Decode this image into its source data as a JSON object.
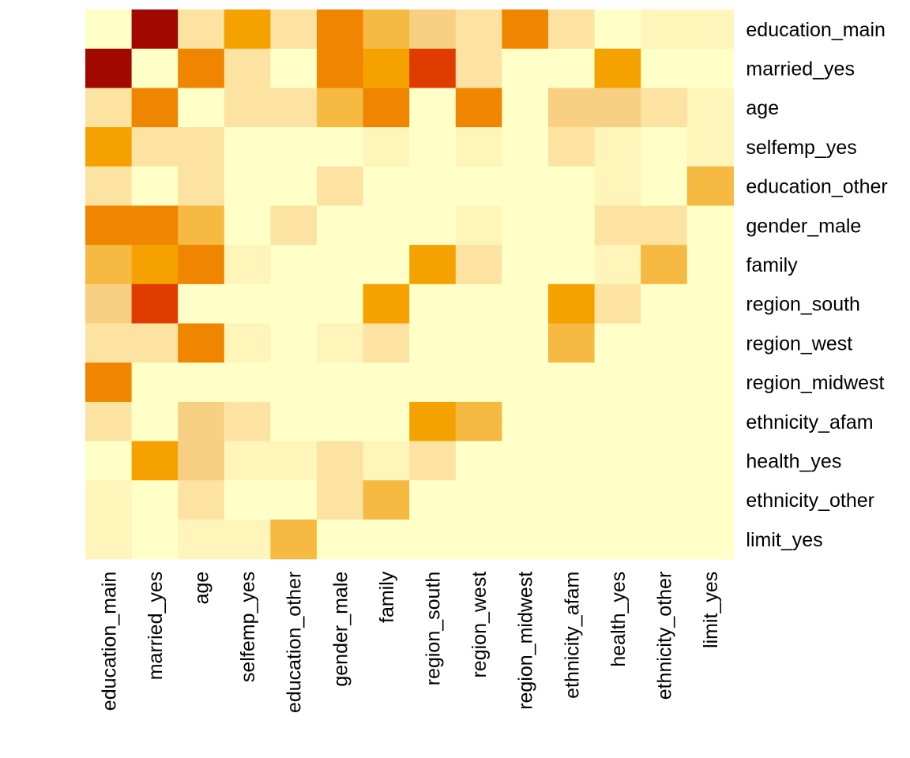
{
  "chart_data": {
    "type": "heatmap",
    "title": "",
    "xlabel": "",
    "ylabel": "",
    "x_categories": [
      "education_main",
      "married_yes",
      "age",
      "selfemp_yes",
      "education_other",
      "gender_male",
      "family",
      "region_south",
      "region_west",
      "region_midwest",
      "ethnicity_afam",
      "health_yes",
      "ethnicity_other",
      "limit_yes"
    ],
    "y_categories": [
      "education_main",
      "married_yes",
      "age",
      "selfemp_yes",
      "education_other",
      "gender_male",
      "family",
      "region_south",
      "region_west",
      "region_midwest",
      "ethnicity_afam",
      "health_yes",
      "ethnicity_other",
      "limit_yes"
    ],
    "levels": [
      [
        0,
        9,
        2,
        5,
        2,
        6,
        4,
        3,
        2,
        6,
        2,
        0,
        1,
        1
      ],
      [
        9,
        0,
        6,
        2,
        0,
        6,
        5,
        8,
        2,
        0,
        0,
        5,
        0,
        0
      ],
      [
        2,
        6,
        0,
        2,
        2,
        4,
        6,
        0,
        6,
        0,
        3,
        3,
        2,
        1
      ],
      [
        5,
        2,
        2,
        0,
        0,
        0,
        1,
        0,
        1,
        0,
        2,
        1,
        0,
        1
      ],
      [
        2,
        0,
        2,
        0,
        0,
        2,
        0,
        0,
        0,
        0,
        0,
        1,
        0,
        4
      ],
      [
        6,
        6,
        4,
        0,
        2,
        0,
        0,
        0,
        1,
        0,
        0,
        2,
        2,
        0
      ],
      [
        4,
        5,
        6,
        1,
        0,
        0,
        0,
        5,
        2,
        0,
        0,
        1,
        4,
        0
      ],
      [
        3,
        8,
        0,
        0,
        0,
        0,
        5,
        0,
        0,
        0,
        5,
        2,
        0,
        0
      ],
      [
        2,
        2,
        6,
        1,
        0,
        1,
        2,
        0,
        0,
        0,
        4,
        0,
        0,
        0
      ],
      [
        6,
        0,
        0,
        0,
        0,
        0,
        0,
        0,
        0,
        0,
        0,
        0,
        0,
        0
      ],
      [
        2,
        0,
        3,
        2,
        0,
        0,
        0,
        5,
        4,
        0,
        0,
        0,
        0,
        0
      ],
      [
        0,
        5,
        3,
        1,
        1,
        2,
        1,
        2,
        0,
        0,
        0,
        0,
        0,
        0
      ],
      [
        1,
        0,
        2,
        0,
        0,
        2,
        4,
        0,
        0,
        0,
        0,
        0,
        0,
        0
      ],
      [
        1,
        0,
        1,
        1,
        4,
        0,
        0,
        0,
        0,
        0,
        0,
        0,
        0,
        0
      ]
    ],
    "palette": [
      "#FFFFC8",
      "#FFF4B9",
      "#FCE3A1",
      "#F8D084",
      "#F6B941",
      "#F5A200",
      "#F08500",
      "#EB6300",
      "#E03C00",
      "#A00800",
      "#7D0025"
    ],
    "legend": "none",
    "grid": false
  }
}
